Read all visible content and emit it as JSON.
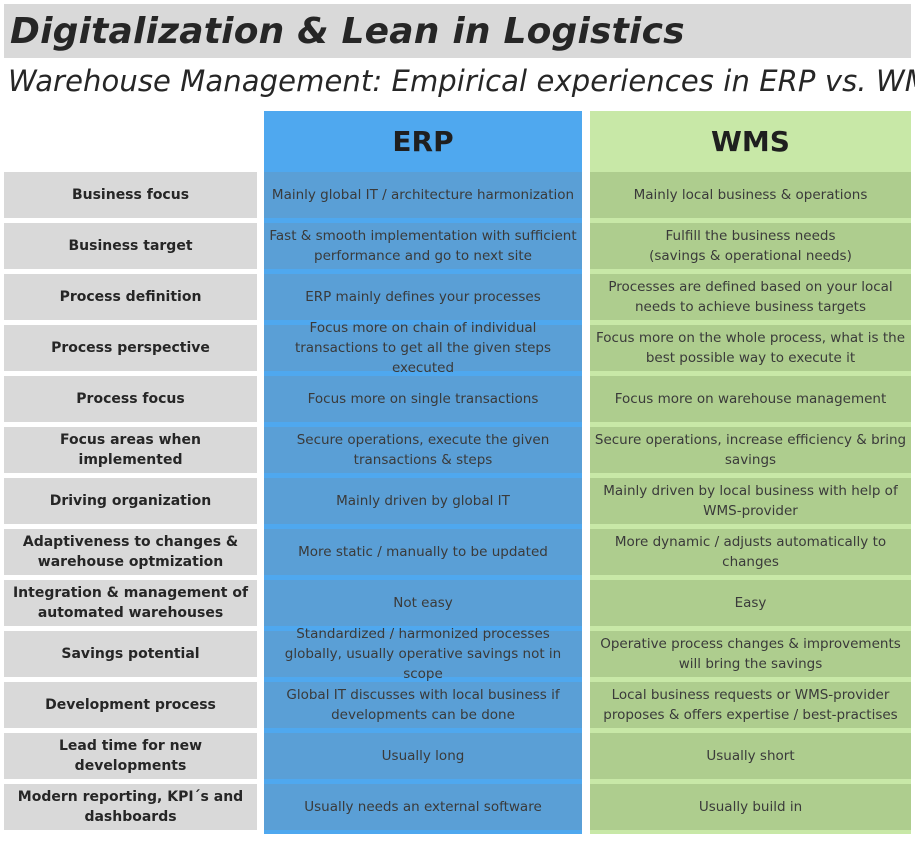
{
  "title": "Digitalization & Lean in Logistics",
  "subtitle": "Warehouse Management: Empirical experiences in ERP vs. WMS",
  "columns": {
    "erp": "ERP",
    "wms": "WMS"
  },
  "colors": {
    "erp_header": "#4fa8ef",
    "erp_cell": "#5a9fd6",
    "wms_header": "#c8e8a7",
    "wms_cell": "#aecd8e",
    "label_cell": "#d9d9d9"
  },
  "rows": [
    {
      "label": "Business focus",
      "erp": "Mainly global IT / architecture harmonization",
      "wms": "Mainly local business & operations"
    },
    {
      "label": "Business target",
      "erp": "Fast & smooth implementation with sufficient performance and go to next site",
      "wms": "Fulfill the business needs\n(savings & operational needs)"
    },
    {
      "label": "Process definition",
      "erp": "ERP mainly defines your processes",
      "wms": "Processes are defined based on your local needs to achieve business targets"
    },
    {
      "label": "Process perspective",
      "erp": "Focus more on chain of individual transactions to get all the given steps executed",
      "wms": "Focus more on the whole process, what is the best possible way to execute it"
    },
    {
      "label": "Process focus",
      "erp": "Focus more on single transactions",
      "wms": "Focus more on warehouse management"
    },
    {
      "label": "Focus areas when implemented",
      "erp": "Secure operations, execute the given transactions & steps",
      "wms": "Secure operations, increase efficiency & bring savings"
    },
    {
      "label": "Driving organization",
      "erp": "Mainly driven by global IT",
      "wms": "Mainly driven by local business with help of WMS-provider"
    },
    {
      "label": "Adaptiveness to changes & warehouse optmization",
      "erp": "More static / manually to be updated",
      "wms": "More dynamic / adjusts automatically to changes"
    },
    {
      "label": "Integration & management of automated warehouses",
      "erp": "Not easy",
      "wms": "Easy"
    },
    {
      "label": "Savings potential",
      "erp": "Standardized / harmonized processes globally, usually operative savings not in scope",
      "wms": "Operative process changes & improvements will bring the savings"
    },
    {
      "label": "Development process",
      "erp": "Global IT discusses with local business if developments can be done",
      "wms": "Local business requests or WMS-provider proposes & offers expertise / best-practises"
    },
    {
      "label": "Lead time for new developments",
      "erp": "Usually long",
      "wms": "Usually short"
    },
    {
      "label": "Modern reporting, KPI´s and dashboards",
      "erp": "Usually needs an external software",
      "wms": "Usually build in"
    }
  ]
}
